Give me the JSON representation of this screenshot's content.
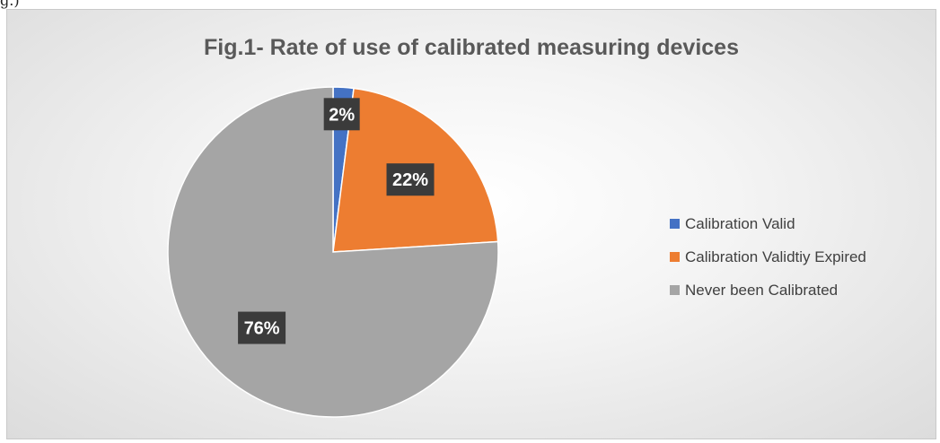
{
  "page_fragment": "g.)",
  "chart_data": {
    "type": "pie",
    "title": "Fig.1- Rate of use of calibrated measuring devices",
    "labels": [
      "Calibration Valid",
      "Calibration Validtiy Expired",
      "Never been Calibrated"
    ],
    "values": [
      2,
      22,
      76
    ],
    "data_labels": [
      "2%",
      "22%",
      "76%"
    ],
    "colors": [
      "#4472c4",
      "#ed7d31",
      "#a5a5a5"
    ],
    "legend_position": "right",
    "start_angle": "12 o'clock, clockwise"
  }
}
